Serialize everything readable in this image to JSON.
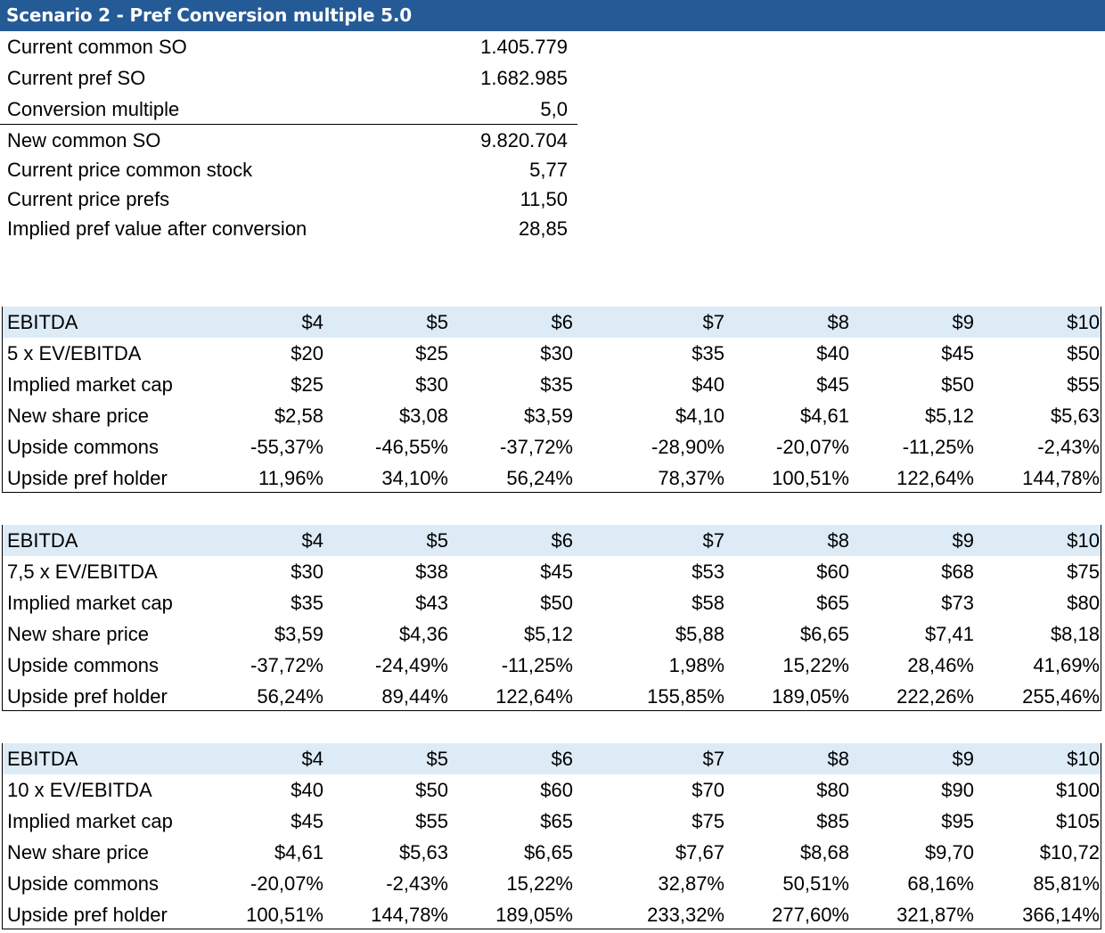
{
  "title": "Scenario 2 - Pref Conversion multiple 5.0",
  "summary": [
    {
      "label": "Current common SO",
      "value": "1.405.779"
    },
    {
      "label": "Current pref SO",
      "value": "1.682.985"
    },
    {
      "label": "Conversion multiple",
      "value": "5,0"
    },
    {
      "label": "New common SO",
      "value": "9.820.704"
    },
    {
      "label": "Current price common stock",
      "value": "5,77"
    },
    {
      "label": "Current price prefs",
      "value": "11,50"
    },
    {
      "label": "Implied pref value after conversion",
      "value": "28,85"
    }
  ],
  "tables": [
    {
      "rows": [
        {
          "label": "EBITDA",
          "cells": [
            "$4",
            "$5",
            "$6",
            "$7",
            "$8",
            "$9",
            "$10"
          ]
        },
        {
          "label": "5 x EV/EBITDA",
          "cells": [
            "$20",
            "$25",
            "$30",
            "$35",
            "$40",
            "$45",
            "$50"
          ]
        },
        {
          "label": "Implied market cap",
          "cells": [
            "$25",
            "$30",
            "$35",
            "$40",
            "$45",
            "$50",
            "$55"
          ]
        },
        {
          "label": "New share price",
          "cells": [
            "$2,58",
            "$3,08",
            "$3,59",
            "$4,10",
            "$4,61",
            "$5,12",
            "$5,63"
          ]
        },
        {
          "label": "Upside commons",
          "cells": [
            "-55,37%",
            "-46,55%",
            "-37,72%",
            "-28,90%",
            "-20,07%",
            "-11,25%",
            "-2,43%"
          ]
        },
        {
          "label": "Upside pref holder",
          "cells": [
            "11,96%",
            "34,10%",
            "56,24%",
            "78,37%",
            "100,51%",
            "122,64%",
            "144,78%"
          ]
        }
      ]
    },
    {
      "rows": [
        {
          "label": "EBITDA",
          "cells": [
            "$4",
            "$5",
            "$6",
            "$7",
            "$8",
            "$9",
            "$10"
          ]
        },
        {
          "label": "7,5 x EV/EBITDA",
          "cells": [
            "$30",
            "$38",
            "$45",
            "$53",
            "$60",
            "$68",
            "$75"
          ]
        },
        {
          "label": "Implied market cap",
          "cells": [
            "$35",
            "$43",
            "$50",
            "$58",
            "$65",
            "$73",
            "$80"
          ]
        },
        {
          "label": "New share price",
          "cells": [
            "$3,59",
            "$4,36",
            "$5,12",
            "$5,88",
            "$6,65",
            "$7,41",
            "$8,18"
          ]
        },
        {
          "label": "Upside commons",
          "cells": [
            "-37,72%",
            "-24,49%",
            "-11,25%",
            "1,98%",
            "15,22%",
            "28,46%",
            "41,69%"
          ]
        },
        {
          "label": "Upside pref holder",
          "cells": [
            "56,24%",
            "89,44%",
            "122,64%",
            "155,85%",
            "189,05%",
            "222,26%",
            "255,46%"
          ]
        }
      ]
    },
    {
      "rows": [
        {
          "label": "EBITDA",
          "cells": [
            "$4",
            "$5",
            "$6",
            "$7",
            "$8",
            "$9",
            "$10"
          ]
        },
        {
          "label": "10 x EV/EBITDA",
          "cells": [
            "$40",
            "$50",
            "$60",
            "$70",
            "$80",
            "$90",
            "$100"
          ]
        },
        {
          "label": "Implied market cap",
          "cells": [
            "$45",
            "$55",
            "$65",
            "$75",
            "$85",
            "$95",
            "$105"
          ]
        },
        {
          "label": "New share price",
          "cells": [
            "$4,61",
            "$5,63",
            "$6,65",
            "$7,67",
            "$8,68",
            "$9,70",
            "$10,72"
          ]
        },
        {
          "label": "Upside commons",
          "cells": [
            "-20,07%",
            "-2,43%",
            "15,22%",
            "32,87%",
            "50,51%",
            "68,16%",
            "85,81%"
          ]
        },
        {
          "label": "Upside pref holder",
          "cells": [
            "100,51%",
            "144,78%",
            "189,05%",
            "233,32%",
            "277,60%",
            "321,87%",
            "366,14%"
          ]
        }
      ]
    }
  ]
}
